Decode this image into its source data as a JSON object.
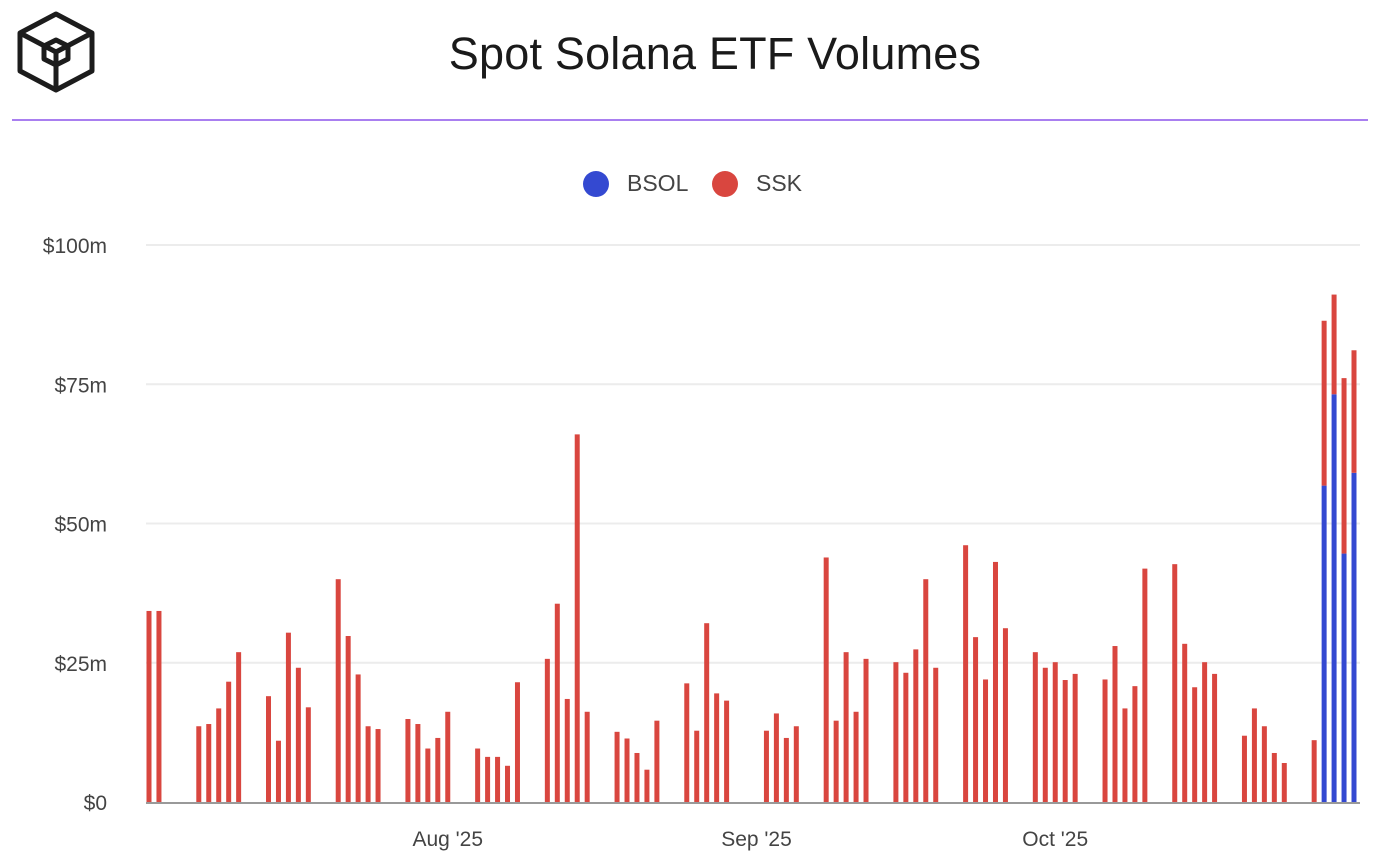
{
  "header": {
    "title": "Spot Solana ETF Volumes"
  },
  "colors": {
    "accent_rule": "#a97ff0",
    "bsol": "#3449d1",
    "ssk": "#d9463f",
    "grid": "#ececec",
    "axis": "#999999"
  },
  "logo": {
    "icon": "cube-logo-icon"
  },
  "chart_data": {
    "type": "bar",
    "stacked": true,
    "title": "Spot Solana ETF Volumes",
    "legend_position": "top-center",
    "grid": true,
    "ylim": [
      0,
      100
    ],
    "y_unit": "$m",
    "y_ticks": [
      0,
      25,
      50,
      75,
      100
    ],
    "y_tick_labels": [
      "$0",
      "$25m",
      "$50m",
      "$75m",
      "$100m"
    ],
    "x_tick_labels": [
      {
        "label": "Aug '25",
        "date": "2025-08-01"
      },
      {
        "label": "Sep '25",
        "date": "2025-09-01"
      },
      {
        "label": "Oct '25",
        "date": "2025-10-01"
      }
    ],
    "dates": [
      "2025-07-02",
      "2025-07-03",
      "2025-07-07",
      "2025-07-08",
      "2025-07-09",
      "2025-07-10",
      "2025-07-11",
      "2025-07-14",
      "2025-07-15",
      "2025-07-16",
      "2025-07-17",
      "2025-07-18",
      "2025-07-21",
      "2025-07-22",
      "2025-07-23",
      "2025-07-24",
      "2025-07-25",
      "2025-07-28",
      "2025-07-29",
      "2025-07-30",
      "2025-07-31",
      "2025-08-01",
      "2025-08-04",
      "2025-08-05",
      "2025-08-06",
      "2025-08-07",
      "2025-08-08",
      "2025-08-11",
      "2025-08-12",
      "2025-08-13",
      "2025-08-14",
      "2025-08-15",
      "2025-08-18",
      "2025-08-19",
      "2025-08-20",
      "2025-08-21",
      "2025-08-22",
      "2025-08-25",
      "2025-08-26",
      "2025-08-27",
      "2025-08-28",
      "2025-08-29",
      "2025-09-02",
      "2025-09-03",
      "2025-09-04",
      "2025-09-05",
      "2025-09-08",
      "2025-09-09",
      "2025-09-10",
      "2025-09-11",
      "2025-09-12",
      "2025-09-15",
      "2025-09-16",
      "2025-09-17",
      "2025-09-18",
      "2025-09-19",
      "2025-09-22",
      "2025-09-23",
      "2025-09-24",
      "2025-09-25",
      "2025-09-26",
      "2025-09-29",
      "2025-09-30",
      "2025-10-01",
      "2025-10-02",
      "2025-10-03",
      "2025-10-06",
      "2025-10-07",
      "2025-10-08",
      "2025-10-09",
      "2025-10-10",
      "2025-10-13",
      "2025-10-14",
      "2025-10-15",
      "2025-10-16",
      "2025-10-17",
      "2025-10-20",
      "2025-10-21",
      "2025-10-22",
      "2025-10-23",
      "2025-10-24",
      "2025-10-27",
      "2025-10-28",
      "2025-10-29",
      "2025-10-30",
      "2025-10-31"
    ],
    "series": [
      {
        "name": "BSOL",
        "color": "#3449d1",
        "values": [
          0,
          0,
          0,
          0,
          0,
          0,
          0,
          0,
          0,
          0,
          0,
          0,
          0,
          0,
          0,
          0,
          0,
          0,
          0,
          0,
          0,
          0,
          0,
          0,
          0,
          0,
          0,
          0,
          0,
          0,
          0,
          0,
          0,
          0,
          0,
          0,
          0,
          0,
          0,
          0,
          0,
          0,
          0,
          0,
          0,
          0,
          0,
          0,
          0,
          0,
          0,
          0,
          0,
          0,
          0,
          0,
          0,
          0,
          0,
          0,
          0,
          0,
          0,
          0,
          0,
          0,
          0,
          0,
          0,
          0,
          0,
          0,
          0,
          0,
          0,
          0,
          0,
          0,
          0,
          0,
          0,
          0,
          56.8,
          73.2,
          44.6,
          59.1
        ]
      },
      {
        "name": "SSK",
        "color": "#d9463f",
        "values": [
          34.3,
          34.3,
          13.6,
          14.0,
          16.8,
          21.6,
          26.9,
          19.0,
          11.0,
          30.4,
          24.1,
          17.0,
          40.0,
          29.8,
          22.9,
          13.6,
          13.1,
          14.9,
          14.0,
          9.6,
          11.5,
          16.2,
          9.6,
          8.1,
          8.1,
          6.5,
          21.5,
          25.7,
          35.6,
          18.5,
          66.0,
          16.2,
          12.6,
          11.4,
          8.8,
          5.8,
          14.6,
          21.3,
          12.8,
          32.1,
          19.5,
          18.2,
          12.8,
          15.9,
          11.5,
          13.6,
          43.9,
          14.6,
          26.9,
          16.2,
          25.7,
          25.1,
          23.2,
          27.4,
          40.0,
          24.1,
          46.1,
          29.6,
          22.0,
          43.1,
          31.2,
          26.9,
          24.1,
          25.1,
          21.9,
          23.0,
          22.0,
          28.0,
          16.8,
          20.8,
          41.9,
          42.7,
          28.4,
          20.6,
          25.1,
          23.0,
          11.9,
          16.8,
          13.6,
          8.8,
          7.0,
          11.1,
          29.6,
          17.9,
          31.5,
          22.0
        ]
      }
    ]
  }
}
